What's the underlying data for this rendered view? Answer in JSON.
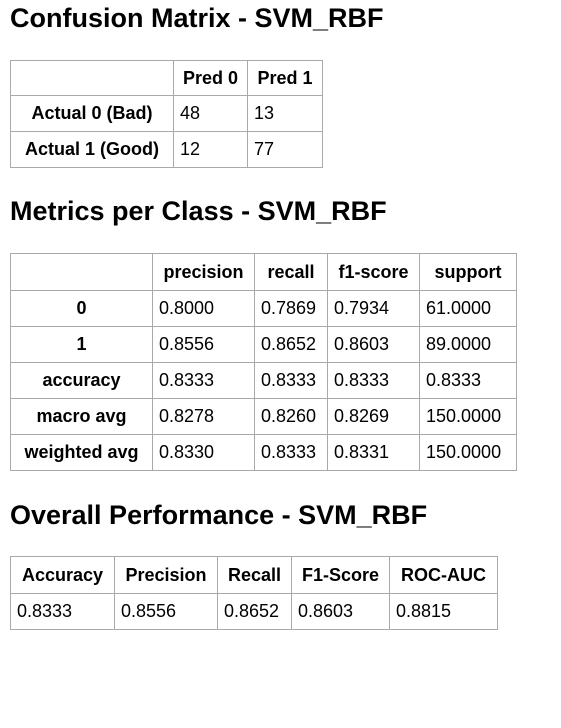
{
  "confusion_matrix": {
    "title": "Confusion Matrix - SVM_RBF",
    "headers": [
      "",
      "Pred 0",
      "Pred 1"
    ],
    "rows": [
      {
        "label": "Actual 0 (Bad)",
        "values": [
          "48",
          "13"
        ]
      },
      {
        "label": "Actual 1 (Good)",
        "values": [
          "12",
          "77"
        ]
      }
    ]
  },
  "metrics_per_class": {
    "title": "Metrics per Class - SVM_RBF",
    "headers": [
      "",
      "precision",
      "recall",
      "f1-score",
      "support"
    ],
    "rows": [
      {
        "label": "0",
        "values": [
          "0.8000",
          "0.7869",
          "0.7934",
          "61.0000"
        ]
      },
      {
        "label": "1",
        "values": [
          "0.8556",
          "0.8652",
          "0.8603",
          "89.0000"
        ]
      },
      {
        "label": "accuracy",
        "values": [
          "0.8333",
          "0.8333",
          "0.8333",
          "0.8333"
        ]
      },
      {
        "label": "macro avg",
        "values": [
          "0.8278",
          "0.8260",
          "0.8269",
          "150.0000"
        ]
      },
      {
        "label": "weighted avg",
        "values": [
          "0.8330",
          "0.8333",
          "0.8331",
          "150.0000"
        ]
      }
    ]
  },
  "overall_performance": {
    "title": "Overall Performance - SVM_RBF",
    "headers": [
      "Accuracy",
      "Precision",
      "Recall",
      "F1-Score",
      "ROC-AUC"
    ],
    "values": [
      "0.8333",
      "0.8556",
      "0.8652",
      "0.8603",
      "0.8815"
    ]
  }
}
